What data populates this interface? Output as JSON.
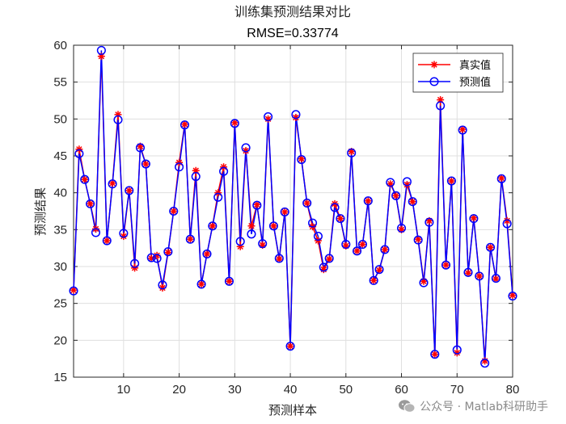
{
  "chart_data": {
    "type": "line",
    "title": "训练集预测结果对比",
    "subtitle": "RMSE=0.33774",
    "xlabel": "预测样本",
    "ylabel": "预测结果",
    "xlim": [
      1,
      80
    ],
    "ylim": [
      15,
      60
    ],
    "xticks": [
      10,
      20,
      30,
      40,
      50,
      60,
      70,
      80
    ],
    "yticks": [
      15,
      20,
      25,
      30,
      35,
      40,
      45,
      50,
      55,
      60
    ],
    "grid": true,
    "legend_position": "top-right",
    "x": [
      1,
      2,
      3,
      4,
      5,
      6,
      7,
      8,
      9,
      10,
      11,
      12,
      13,
      14,
      15,
      16,
      17,
      18,
      19,
      20,
      21,
      22,
      23,
      24,
      25,
      26,
      27,
      28,
      29,
      30,
      31,
      32,
      33,
      34,
      35,
      36,
      37,
      38,
      39,
      40,
      41,
      42,
      43,
      44,
      45,
      46,
      47,
      48,
      49,
      50,
      51,
      52,
      53,
      54,
      55,
      56,
      57,
      58,
      59,
      60,
      61,
      62,
      63,
      64,
      65,
      66,
      67,
      68,
      69,
      70,
      71,
      72,
      73,
      74,
      75,
      76,
      77,
      78,
      79,
      80
    ],
    "series": [
      {
        "name": "真实值",
        "color": "#ff0000",
        "marker": "asterisk",
        "values": [
          26.8,
          45.9,
          41.8,
          38.5,
          35.1,
          58.5,
          33.5,
          41.3,
          50.6,
          34.1,
          40.3,
          29.8,
          46.3,
          43.9,
          31.1,
          31.5,
          27.1,
          31.9,
          37.5,
          44.1,
          49.3,
          33.7,
          43.0,
          27.6,
          31.7,
          35.5,
          40.0,
          43.5,
          28.0,
          49.5,
          32.7,
          45.7,
          35.5,
          38.4,
          32.9,
          50.0,
          35.5,
          31.0,
          37.4,
          19.2,
          50.2,
          44.6,
          38.6,
          35.4,
          33.5,
          29.6,
          31.0,
          38.5,
          36.5,
          32.8,
          45.6,
          32.1,
          33.0,
          38.9,
          28.1,
          29.5,
          32.3,
          41.2,
          39.6,
          35.0,
          41.1,
          38.8,
          33.7,
          28.0,
          36.2,
          18.1,
          52.6,
          30.2,
          41.6,
          18.3,
          48.6,
          29.1,
          36.6,
          28.7,
          17.2,
          32.6,
          28.3,
          42.0,
          36.2,
          26.1
        ]
      },
      {
        "name": "预测值",
        "color": "#0000ff",
        "marker": "circle",
        "values": [
          26.7,
          45.3,
          41.8,
          38.5,
          34.6,
          59.3,
          33.5,
          41.2,
          49.9,
          34.5,
          40.3,
          30.4,
          46.1,
          43.9,
          31.2,
          31.1,
          27.5,
          32.0,
          37.5,
          43.5,
          49.2,
          33.7,
          42.2,
          27.6,
          31.7,
          35.5,
          39.4,
          42.9,
          28.0,
          49.4,
          33.4,
          46.1,
          34.4,
          38.3,
          33.1,
          50.3,
          35.5,
          31.1,
          37.4,
          19.2,
          50.6,
          44.5,
          38.6,
          35.9,
          34.1,
          29.9,
          31.1,
          38.0,
          36.5,
          33.0,
          45.4,
          32.1,
          33.0,
          38.9,
          28.1,
          29.6,
          32.3,
          41.4,
          39.6,
          35.2,
          41.5,
          38.8,
          33.6,
          27.8,
          36.0,
          18.1,
          51.8,
          30.2,
          41.6,
          18.7,
          48.5,
          29.2,
          36.5,
          28.7,
          16.9,
          32.6,
          28.4,
          41.9,
          35.8,
          26.0
        ]
      }
    ]
  },
  "watermark": {
    "text": "公众号 · Matlab科研助手"
  }
}
